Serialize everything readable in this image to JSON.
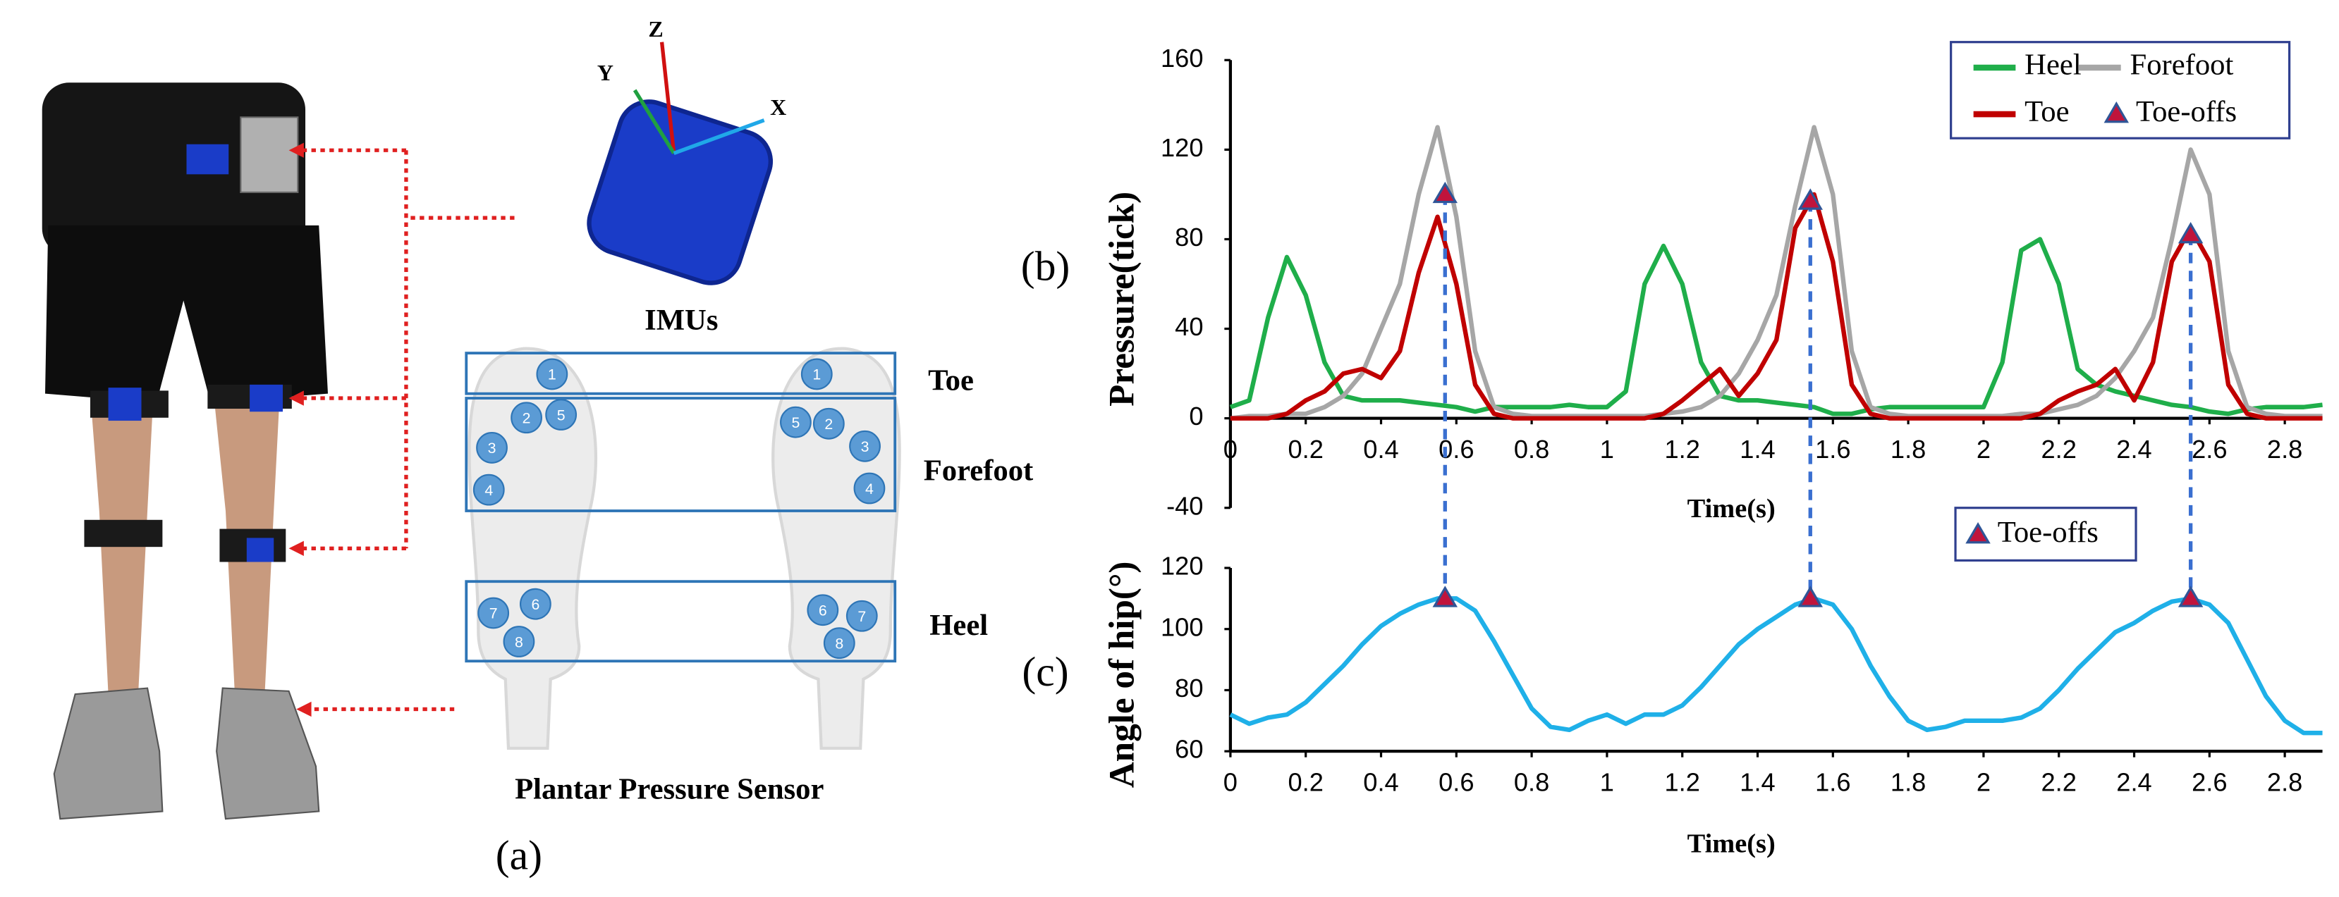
{
  "figure_a": {
    "panel_label": "(a)",
    "imu_axes": {
      "x": "X",
      "y": "Y",
      "z": "Z"
    },
    "imu_label": "IMUs",
    "regions": [
      "Toe",
      "Forefoot",
      "Heel"
    ],
    "sensor_label": "Plantar Pressure Sensor",
    "left_sensors": [
      "1",
      "2",
      "5",
      "3",
      "4",
      "7",
      "6",
      "8"
    ],
    "right_sensors": [
      "1",
      "5",
      "2",
      "3",
      "4",
      "6",
      "7",
      "8"
    ]
  },
  "chart_data": [
    {
      "type": "line",
      "panel_label": "(b)",
      "x_label": "Time(s)",
      "y_label": "Pressure(tick)",
      "x": [
        0,
        0.05,
        0.1,
        0.15,
        0.2,
        0.25,
        0.3,
        0.35,
        0.4,
        0.45,
        0.5,
        0.55,
        0.6,
        0.65,
        0.7,
        0.75,
        0.8,
        0.85,
        0.9,
        0.95,
        1,
        1.05,
        1.1,
        1.15,
        1.2,
        1.25,
        1.3,
        1.35,
        1.4,
        1.45,
        1.5,
        1.55,
        1.6,
        1.65,
        1.7,
        1.75,
        1.8,
        1.85,
        1.9,
        1.95,
        2,
        2.05,
        2.1,
        2.15,
        2.2,
        2.25,
        2.3,
        2.35,
        2.4,
        2.45,
        2.5,
        2.55,
        2.6,
        2.65,
        2.7,
        2.75,
        2.8,
        2.85,
        2.9
      ],
      "xlim": [
        0,
        2.9
      ],
      "ylim": [
        -40,
        160
      ],
      "xticks": [
        0,
        0.2,
        0.4,
        0.6,
        0.8,
        1,
        1.2,
        1.4,
        1.6,
        1.8,
        2,
        2.2,
        2.4,
        2.6,
        2.8
      ],
      "yticks": [
        -40,
        0,
        40,
        80,
        120,
        160
      ],
      "legend": "upper right",
      "series": [
        {
          "name": "Heel",
          "color": "#1fae4a",
          "values": [
            5,
            8,
            45,
            72,
            55,
            25,
            10,
            8,
            8,
            8,
            7,
            6,
            5,
            3,
            5,
            5,
            5,
            5,
            6,
            5,
            5,
            12,
            60,
            77,
            60,
            25,
            10,
            8,
            8,
            7,
            6,
            5,
            2,
            2,
            4,
            5,
            5,
            5,
            5,
            5,
            5,
            25,
            75,
            80,
            60,
            22,
            15,
            12,
            10,
            8,
            6,
            5,
            3,
            2,
            4,
            5,
            5,
            5,
            6
          ]
        },
        {
          "name": "Forefoot",
          "color": "#a6a6a6",
          "values": [
            0,
            1,
            1,
            2,
            2,
            5,
            10,
            20,
            40,
            60,
            100,
            130,
            90,
            30,
            5,
            2,
            1,
            1,
            1,
            1,
            1,
            1,
            1,
            2,
            3,
            5,
            10,
            20,
            35,
            55,
            95,
            130,
            100,
            30,
            5,
            2,
            1,
            1,
            1,
            1,
            1,
            1,
            2,
            2,
            4,
            6,
            10,
            18,
            30,
            45,
            80,
            120,
            100,
            30,
            5,
            2,
            1,
            1,
            1
          ]
        },
        {
          "name": "Toe",
          "color": "#c00000",
          "values": [
            0,
            0,
            0,
            2,
            8,
            12,
            20,
            22,
            18,
            30,
            65,
            90,
            60,
            15,
            2,
            0,
            0,
            0,
            0,
            0,
            0,
            0,
            0,
            2,
            8,
            15,
            22,
            10,
            20,
            35,
            85,
            100,
            70,
            15,
            2,
            0,
            0,
            0,
            0,
            0,
            0,
            0,
            0,
            2,
            8,
            12,
            15,
            22,
            8,
            25,
            70,
            85,
            70,
            15,
            2,
            0,
            0,
            0,
            0
          ]
        }
      ],
      "markers": {
        "name": "Toe-offs",
        "color": "#c0143c",
        "x": [
          0.57,
          1.54,
          2.55
        ],
        "values": [
          100,
          97,
          82
        ]
      }
    },
    {
      "type": "line",
      "panel_label": "(c)",
      "x_label": "Time(s)",
      "y_label": "Angle of hip(°)",
      "x": [
        0,
        0.05,
        0.1,
        0.15,
        0.2,
        0.25,
        0.3,
        0.35,
        0.4,
        0.45,
        0.5,
        0.55,
        0.6,
        0.65,
        0.7,
        0.75,
        0.8,
        0.85,
        0.9,
        0.95,
        1,
        1.05,
        1.1,
        1.15,
        1.2,
        1.25,
        1.3,
        1.35,
        1.4,
        1.45,
        1.5,
        1.55,
        1.6,
        1.65,
        1.7,
        1.75,
        1.8,
        1.85,
        1.9,
        1.95,
        2,
        2.05,
        2.1,
        2.15,
        2.2,
        2.25,
        2.3,
        2.35,
        2.4,
        2.45,
        2.5,
        2.55,
        2.6,
        2.65,
        2.7,
        2.75,
        2.8,
        2.85,
        2.9
      ],
      "xlim": [
        0,
        2.9
      ],
      "ylim": [
        60,
        120
      ],
      "xticks": [
        0,
        0.2,
        0.4,
        0.6,
        0.8,
        1,
        1.2,
        1.4,
        1.6,
        1.8,
        2,
        2.2,
        2.4,
        2.6,
        2.8
      ],
      "yticks": [
        60,
        80,
        100,
        120
      ],
      "legend": "upper right",
      "series": [
        {
          "color": "#1fb0e8",
          "values": [
            72,
            69,
            71,
            72,
            76,
            82,
            88,
            95,
            101,
            105,
            108,
            110,
            110,
            106,
            96,
            85,
            74,
            68,
            67,
            70,
            72,
            69,
            72,
            72,
            75,
            81,
            88,
            95,
            100,
            104,
            108,
            110,
            108,
            100,
            88,
            78,
            70,
            67,
            68,
            70,
            70,
            70,
            71,
            74,
            80,
            87,
            93,
            99,
            102,
            106,
            109,
            110,
            108,
            102,
            90,
            78,
            70,
            66,
            66
          ]
        }
      ],
      "markers": {
        "name": "Toe-offs",
        "color": "#c0143c",
        "x": [
          0.57,
          1.54,
          2.55
        ],
        "values": [
          110,
          110,
          110
        ]
      }
    }
  ]
}
